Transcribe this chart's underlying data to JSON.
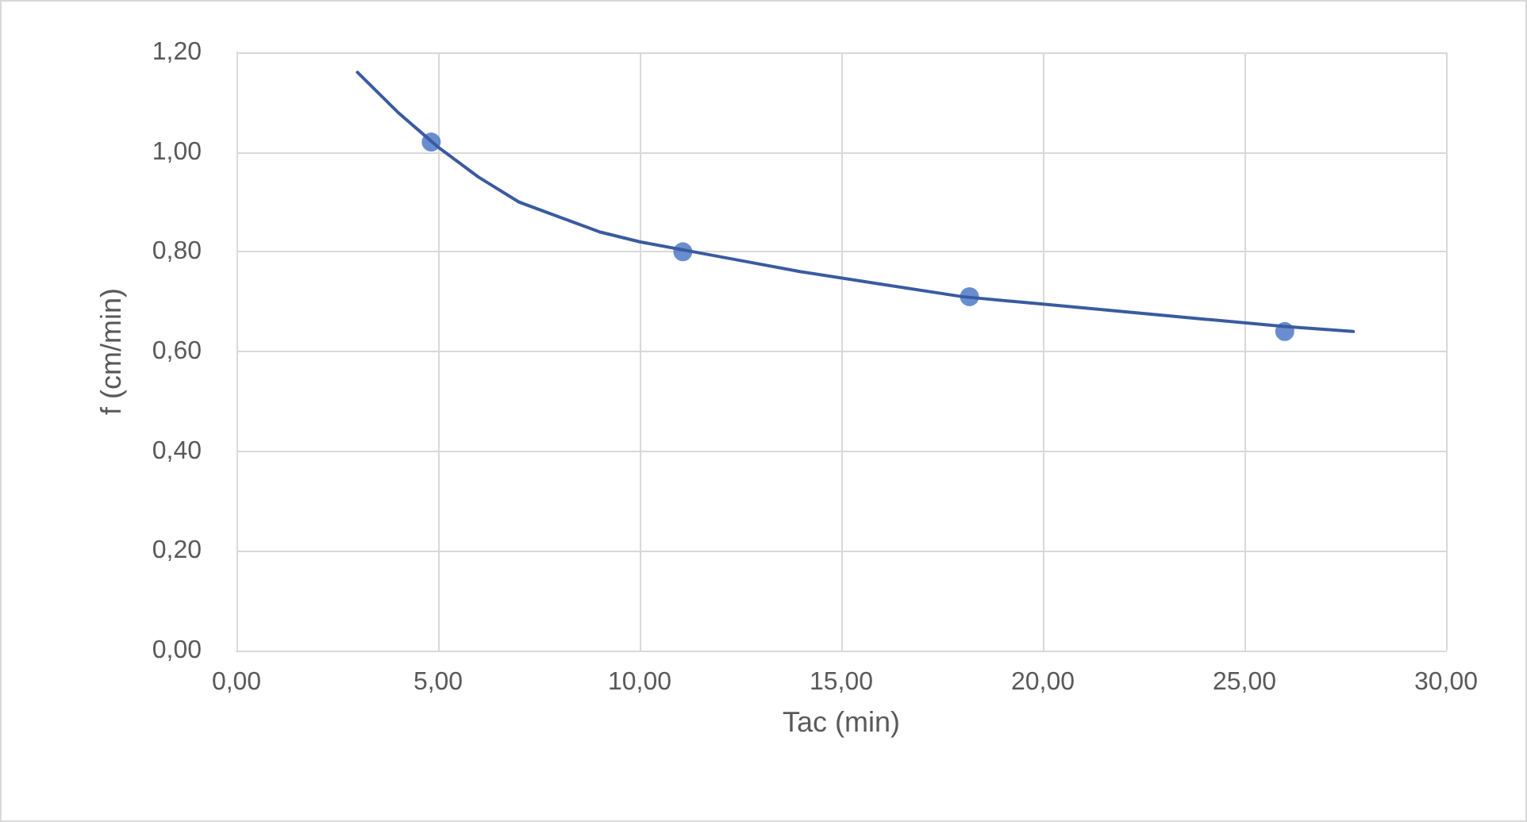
{
  "chart_data": {
    "type": "scatter",
    "xlabel": "Tac (min)",
    "ylabel": "f (cm/min)",
    "xlim": [
      0,
      30
    ],
    "xticks": [
      {
        "value": 0,
        "label": "0,00"
      },
      {
        "value": 5,
        "label": "5,00"
      },
      {
        "value": 10,
        "label": "10,00"
      },
      {
        "value": 15,
        "label": "15,00"
      },
      {
        "value": 20,
        "label": "20,00"
      },
      {
        "value": 25,
        "label": "25,00"
      },
      {
        "value": 30,
        "label": "30,00"
      }
    ],
    "ylim": [
      0,
      1.2
    ],
    "yticks": [
      {
        "value": 0,
        "label": "0,00"
      },
      {
        "value": 0.2,
        "label": "0,20"
      },
      {
        "value": 0.4,
        "label": "0,40"
      },
      {
        "value": 0.6,
        "label": "0,60"
      },
      {
        "value": 0.8,
        "label": "0,80"
      },
      {
        "value": 1.0,
        "label": "1,00"
      },
      {
        "value": 1.2,
        "label": "1,20"
      }
    ],
    "grid": true,
    "series": [
      {
        "color": "#4472c4",
        "marker": "circle",
        "x": [
          4.83,
          11.07,
          18.18,
          26.0
        ],
        "values": [
          1.02,
          0.8,
          0.71,
          0.64
        ]
      },
      {
        "type": "line",
        "color": "#3a5ba0",
        "marker": "none",
        "line_style": "solid",
        "x": [
          3.0,
          4.0,
          5.0,
          6.0,
          7.0,
          8.0,
          9.0,
          10.0,
          12.0,
          14.0,
          16.0,
          18.0,
          20.0,
          22.0,
          24.0,
          26.0,
          27.7
        ],
        "values": [
          1.16,
          1.08,
          1.01,
          0.95,
          0.9,
          0.87,
          0.84,
          0.82,
          0.79,
          0.76,
          0.735,
          0.71,
          0.695,
          0.68,
          0.665,
          0.65,
          0.64
        ]
      }
    ]
  }
}
